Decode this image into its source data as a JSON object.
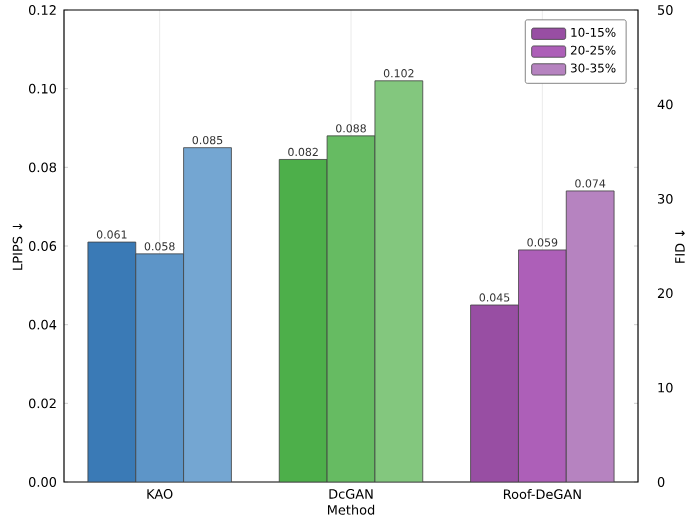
{
  "chart_data": {
    "type": "bar",
    "xlabel": "Method",
    "ylabel": "LPIPS ↓",
    "y2label": "FID ↓",
    "categories": [
      "KAO",
      "DcGAN",
      "Roof-DeGAN"
    ],
    "series": [
      {
        "name": "10-15%",
        "color": "#984ea3",
        "colors": [
          "#3a7ab6",
          "#4daf4a",
          "#984ea3"
        ],
        "values": [
          0.061,
          0.082,
          0.045
        ],
        "value_labels": [
          "0.061",
          "0.082",
          "0.045"
        ]
      },
      {
        "name": "20-25%",
        "color": "#ad5fb8",
        "colors": [
          "#5d95c8",
          "#66bb62",
          "#ad5fb8"
        ],
        "values": [
          0.058,
          0.088,
          0.059
        ],
        "value_labels": [
          "0.058",
          "0.088",
          "0.059"
        ]
      },
      {
        "name": "30-35%",
        "color": "#b683c0",
        "colors": [
          "#74a6d2",
          "#83c77e",
          "#b683c0"
        ],
        "values": [
          0.085,
          0.102,
          0.074
        ],
        "value_labels": [
          "0.085",
          "0.102",
          "0.074"
        ]
      }
    ],
    "ylim": [
      0,
      0.12
    ],
    "yticks": [
      {
        "value": 0,
        "label": "0.00"
      },
      {
        "value": 0.02,
        "label": "0.02"
      },
      {
        "value": 0.04,
        "label": "0.04"
      },
      {
        "value": 0.06,
        "label": "0.06"
      },
      {
        "value": 0.08,
        "label": "0.08"
      },
      {
        "value": 0.1,
        "label": "0.10"
      },
      {
        "value": 0.12,
        "label": "0.12"
      }
    ],
    "y2lim": [
      0,
      50
    ],
    "y2ticks": [
      0,
      10,
      20,
      30,
      40,
      50
    ],
    "grid": "x",
    "legend": "top right"
  }
}
